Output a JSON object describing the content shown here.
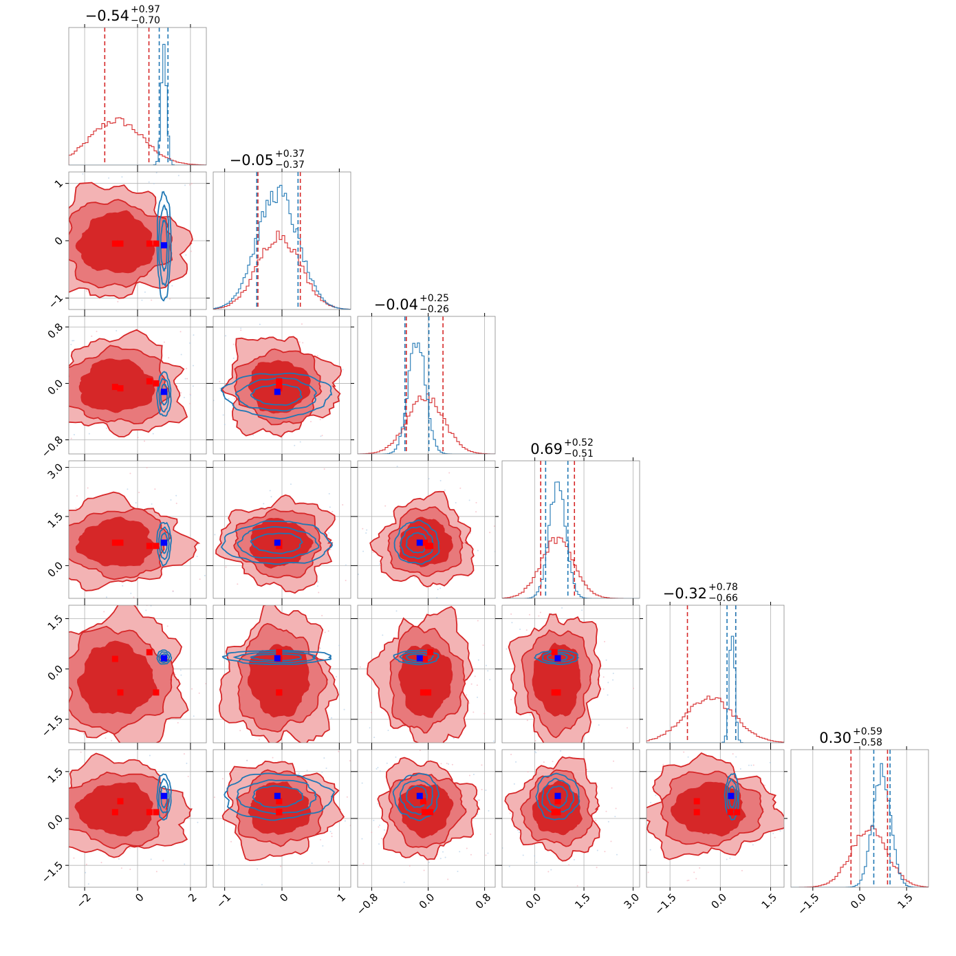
{
  "chart_data": {
    "type": "corner",
    "parameters": [
      {
        "title_main": "−0.54",
        "title_plus": "+0.97",
        "title_minus": "−0.70",
        "range": [
          -2.6,
          2.6
        ],
        "ticks": [
          -2,
          0,
          2
        ],
        "tick_labels": [
          "−2",
          "0",
          "2"
        ],
        "red_q": [
          -1.24,
          0.43
        ],
        "blue_q": [
          0.82,
          1.15
        ],
        "red_center": -0.8,
        "red_sd": 1.0,
        "blue_center": 1.0,
        "blue_sd": 0.1
      },
      {
        "title_main": "−0.05",
        "title_plus": "+0.37",
        "title_minus": "−0.37",
        "range": [
          -1.2,
          1.2
        ],
        "ticks": [
          -1,
          0,
          1
        ],
        "tick_labels": [
          "−1",
          "0",
          "1"
        ],
        "red_q": [
          -0.42,
          0.32
        ],
        "blue_q": [
          -0.44,
          0.28
        ],
        "red_center": -0.05,
        "red_sd": 0.37,
        "blue_center": -0.08,
        "blue_sd": 0.36
      },
      {
        "title_main": "−0.04",
        "title_plus": "+0.25",
        "title_minus": "−0.26",
        "range": [
          -1.0,
          0.95
        ],
        "ticks": [
          -0.8,
          0.0,
          0.8
        ],
        "tick_labels": [
          "−0.8",
          "0.0",
          "0.8"
        ],
        "red_q": [
          -0.31,
          0.21
        ],
        "blue_q": [
          -0.33,
          0.01
        ],
        "red_center": -0.04,
        "red_sd": 0.26,
        "blue_center": -0.16,
        "blue_sd": 0.12
      },
      {
        "title_main": "0.69",
        "title_plus": "+0.52",
        "title_minus": "−0.51",
        "range": [
          -1.0,
          3.2
        ],
        "ticks": [
          0.0,
          1.5,
          3.0
        ],
        "tick_labels": [
          "0.0",
          "1.5",
          "3.0"
        ],
        "red_q": [
          0.18,
          1.21
        ],
        "blue_q": [
          0.33,
          1.01
        ],
        "red_center": 0.69,
        "red_sd": 0.51,
        "blue_center": 0.69,
        "blue_sd": 0.25
      },
      {
        "title_main": "−0.32",
        "title_plus": "+0.78",
        "title_minus": "−0.66",
        "range": [
          -2.2,
          1.9
        ],
        "ticks": [
          -1.5,
          0.0,
          1.5
        ],
        "tick_labels": [
          "−1.5",
          "0.0",
          "1.5"
        ],
        "red_q": [
          -0.98,
          0.46
        ],
        "blue_q": [
          0.2,
          0.46
        ],
        "red_center": -0.32,
        "red_sd": 0.75,
        "blue_center": 0.35,
        "blue_sd": 0.08
      },
      {
        "title_main": "0.30",
        "title_plus": "+0.59",
        "title_minus": "−0.58",
        "range": [
          -2.2,
          2.2
        ],
        "ticks": [
          -1.5,
          0.0,
          1.5
        ],
        "tick_labels": [
          "−1.5",
          "0.0",
          "1.5"
        ],
        "red_q": [
          -0.28,
          0.89
        ],
        "blue_q": [
          0.45,
          0.97
        ],
        "red_center": 0.3,
        "red_sd": 0.58,
        "blue_center": 0.7,
        "blue_sd": 0.28
      }
    ],
    "y_ticks": [
      {
        "ticks": [
          -1,
          0,
          1
        ],
        "tick_labels": [
          "−1",
          "0",
          "1"
        ]
      },
      {
        "ticks": [
          -0.8,
          0.0,
          0.8
        ],
        "tick_labels": [
          "−0.8",
          "0.0",
          "0.8"
        ]
      },
      {
        "ticks": [
          0.0,
          1.5,
          3.0
        ],
        "tick_labels": [
          "0.0",
          "1.5",
          "3.0"
        ]
      },
      {
        "ticks": [
          -1.5,
          0.0,
          1.5
        ],
        "tick_labels": [
          "−1.5",
          "0.0",
          "1.5"
        ]
      },
      {
        "ticks": [
          -1.5,
          0.0,
          1.5
        ],
        "tick_labels": [
          "−1.5",
          "0.0",
          "1.5"
        ]
      }
    ],
    "series": [
      {
        "color": "#d62728",
        "fill_light": "#f0a6a7",
        "fill_mid": "#e86a6c",
        "fill_dark": "#d62728",
        "marker": "#ff0000"
      },
      {
        "color": "#1f77b4",
        "marker": "#0000ff"
      }
    ],
    "red_markers": [
      [
        -0.85,
        -0.05,
        -0.05,
        0.7,
        0.3,
        0.2
      ],
      [
        -0.65,
        -0.05,
        -0.07,
        0.7,
        -0.7,
        0.55
      ],
      [
        0.45,
        -0.05,
        0.03,
        0.6,
        0.5,
        0.2
      ],
      [
        0.7,
        -0.05,
        0.0,
        0.6,
        -0.7,
        0.2
      ]
    ],
    "blue_marker": [
      1.0,
      -0.08,
      -0.12,
      0.7,
      0.32,
      0.72
    ],
    "grid": true,
    "layout": "lower-triangular 6x6 corner plot"
  }
}
